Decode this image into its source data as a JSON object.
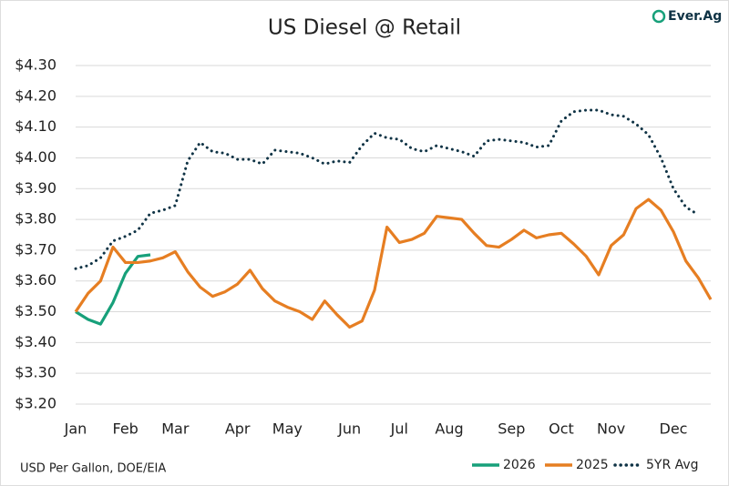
{
  "chart_data": {
    "type": "line",
    "title": "US Diesel @ Retail",
    "logo": "Ever.Ag",
    "source": "USD Per Gallon, DOE/EIA",
    "categories": [
      "Jan",
      null,
      null,
      null,
      "Feb",
      null,
      null,
      null,
      "Mar",
      null,
      null,
      null,
      null,
      "Apr",
      null,
      null,
      null,
      "May",
      null,
      null,
      null,
      null,
      "Jun",
      null,
      null,
      null,
      "Jul",
      null,
      null,
      null,
      "Aug",
      null,
      null,
      null,
      null,
      "Sep",
      null,
      null,
      null,
      "Oct",
      null,
      null,
      null,
      "Nov",
      null,
      null,
      null,
      null,
      "Dec",
      null,
      null,
      null
    ],
    "series": [
      {
        "name": "2026",
        "color": "#17a07a",
        "line_style": "solid",
        "values": [
          3.5,
          3.475,
          3.46,
          3.53,
          3.625,
          3.68,
          3.685,
          null,
          null,
          null,
          null,
          null,
          null,
          null,
          null,
          null,
          null,
          null,
          null,
          null,
          null,
          null,
          null,
          null,
          null,
          null,
          null,
          null,
          null,
          null,
          null,
          null,
          null,
          null,
          null,
          null,
          null,
          null,
          null,
          null,
          null,
          null,
          null,
          null,
          null,
          null,
          null,
          null,
          null,
          null,
          null,
          null
        ]
      },
      {
        "name": "2025",
        "color": "#e67e22",
        "line_style": "solid",
        "values": [
          3.5,
          3.56,
          3.6,
          3.71,
          3.66,
          3.66,
          3.665,
          3.675,
          3.695,
          3.63,
          3.58,
          3.55,
          3.565,
          3.59,
          3.635,
          3.575,
          3.535,
          3.515,
          3.5,
          3.475,
          3.535,
          3.49,
          3.45,
          3.47,
          3.57,
          3.775,
          3.725,
          3.735,
          3.755,
          3.81,
          3.805,
          3.8,
          3.755,
          3.715,
          3.71,
          3.735,
          3.765,
          3.74,
          3.75,
          3.755,
          3.72,
          3.68,
          3.62,
          3.715,
          3.75,
          3.835,
          3.865,
          3.83,
          3.76,
          3.665,
          3.61,
          3.54
        ]
      },
      {
        "name": "5YR Avg",
        "color": "#0f3345",
        "line_style": "dotted",
        "values": [
          3.64,
          3.65,
          3.675,
          3.73,
          3.745,
          3.765,
          3.82,
          3.83,
          3.845,
          3.99,
          4.05,
          4.02,
          4.015,
          3.995,
          3.995,
          3.98,
          4.025,
          4.02,
          4.015,
          4.0,
          3.98,
          3.99,
          3.985,
          4.04,
          4.08,
          4.065,
          4.06,
          4.03,
          4.02,
          4.04,
          4.03,
          4.02,
          4.005,
          4.055,
          4.06,
          4.055,
          4.05,
          4.035,
          4.04,
          4.12,
          4.15,
          4.155,
          4.155,
          4.14,
          4.135,
          4.11,
          4.075,
          4.0,
          3.9,
          3.84,
          3.815,
          null
        ]
      }
    ],
    "ylim": [
      3.2,
      4.3
    ],
    "yticks": [
      {
        "value": 3.2,
        "label": "$3.20"
      },
      {
        "value": 3.3,
        "label": "$3.30"
      },
      {
        "value": 3.4,
        "label": "$3.40"
      },
      {
        "value": 3.5,
        "label": "$3.50"
      },
      {
        "value": 3.6,
        "label": "$3.60"
      },
      {
        "value": 3.7,
        "label": "$3.70"
      },
      {
        "value": 3.8,
        "label": "$3.80"
      },
      {
        "value": 3.9,
        "label": "$3.90"
      },
      {
        "value": 4.0,
        "label": "$4.00"
      },
      {
        "value": 4.1,
        "label": "$4.10"
      },
      {
        "value": 4.2,
        "label": "$4.20"
      },
      {
        "value": 4.3,
        "label": "$4.30"
      }
    ],
    "grid": true,
    "legend": "bottom-right"
  }
}
